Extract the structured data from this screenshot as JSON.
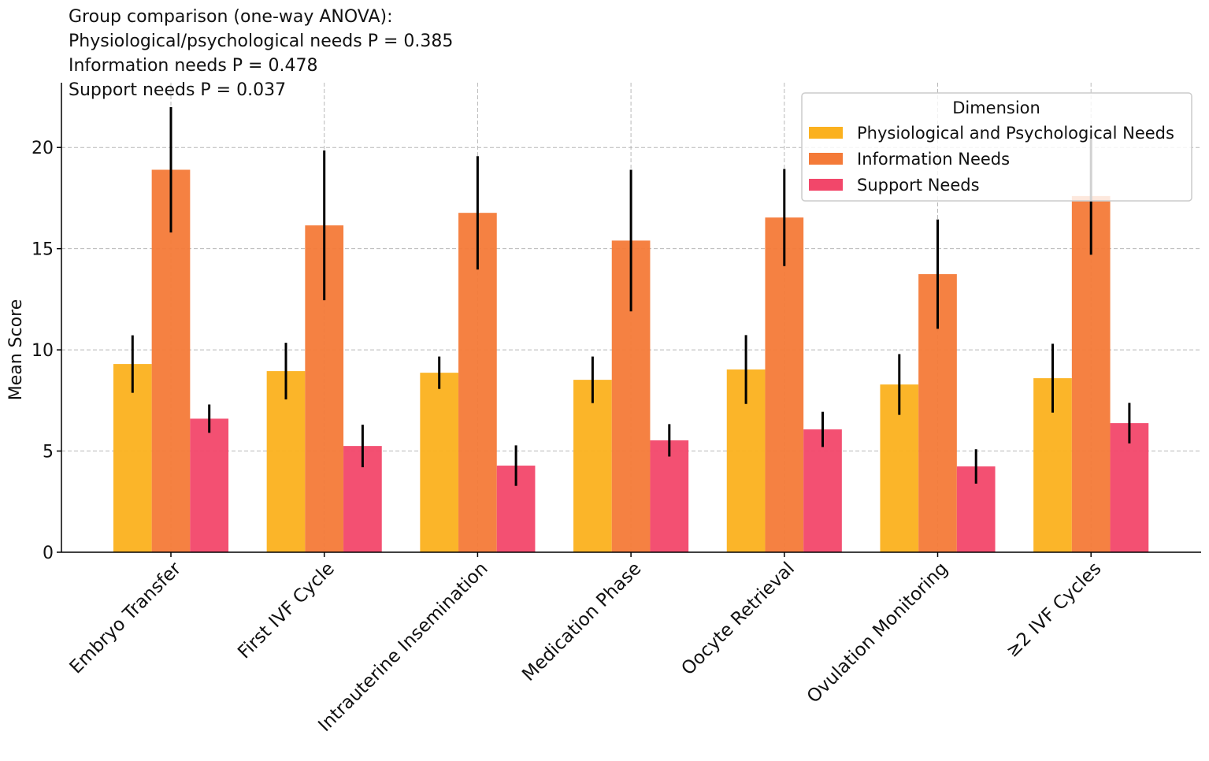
{
  "chart_data": {
    "type": "bar",
    "title": "",
    "xlabel": "",
    "ylabel": "Mean Score",
    "ylim": [
      0,
      23.2
    ],
    "yticks": [
      0,
      5,
      10,
      15,
      20
    ],
    "grid": true,
    "categories": [
      "Embryo Transfer",
      "First IVF Cycle",
      "Intrauterine Insemination",
      "Medication Phase",
      "Oocyte Retrieval",
      "Ovulation Monitoring",
      "≥2 IVF Cycles"
    ],
    "legend": {
      "title": "Dimension",
      "placement": "top-right"
    },
    "series": [
      {
        "name": "Physiological and Psychological Needs",
        "color": "#FBB11E",
        "values": [
          9.3,
          8.95,
          8.87,
          8.52,
          9.03,
          8.29,
          8.6
        ],
        "errors": [
          1.42,
          1.4,
          0.8,
          1.15,
          1.7,
          1.5,
          1.7
        ]
      },
      {
        "name": "Information Needs",
        "color": "#F47A38",
        "values": [
          18.9,
          16.15,
          16.77,
          15.4,
          16.54,
          13.74,
          17.6
        ],
        "errors": [
          3.1,
          3.7,
          2.8,
          3.5,
          2.4,
          2.7,
          2.9
        ]
      },
      {
        "name": "Support Needs",
        "color": "#F2476A",
        "values": [
          6.6,
          5.25,
          4.28,
          5.53,
          6.07,
          4.24,
          6.38
        ],
        "errors": [
          0.7,
          1.05,
          1.0,
          0.8,
          0.87,
          0.85,
          1.0
        ]
      }
    ],
    "annotations": [
      "Group comparison (one-way ANOVA):",
      "Physiological/psychological needs P = 0.385",
      "Information needs P = 0.478",
      "Support needs P = 0.037"
    ]
  }
}
